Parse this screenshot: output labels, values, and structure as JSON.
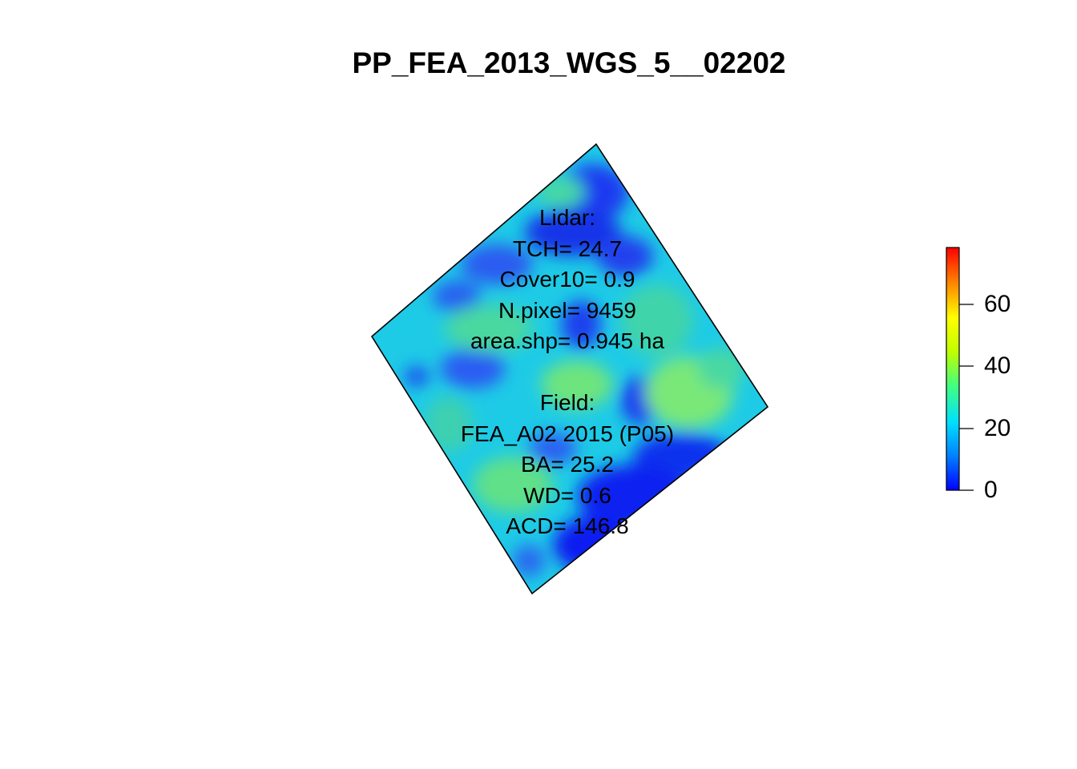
{
  "title": "PP_FEA_2013_WGS_5__02202",
  "lidar": {
    "header": "Lidar:",
    "tch": "TCH= 24.7",
    "cover10": "Cover10= 0.9",
    "npixel": "N.pixel= 9459",
    "area": "area.shp= 0.945 ha"
  },
  "field": {
    "header": "Field:",
    "plot": "FEA_A02 2015 (P05)",
    "ba": "BA= 25.2",
    "wd": "WD= 0.6",
    "acd": "ACD= 146.8"
  },
  "legend": {
    "ticks": [
      "0",
      "20",
      "40",
      "60"
    ],
    "tick_values": [
      0,
      20,
      40,
      60
    ],
    "range": [
      0,
      78
    ],
    "colors": [
      "#0000ff",
      "#0080ff",
      "#00e0ff",
      "#40ff80",
      "#c0ff00",
      "#ffff00",
      "#ff8000",
      "#ff0000"
    ]
  },
  "raster": {
    "base_value": 24,
    "low_value": 5,
    "high_value": 38
  }
}
